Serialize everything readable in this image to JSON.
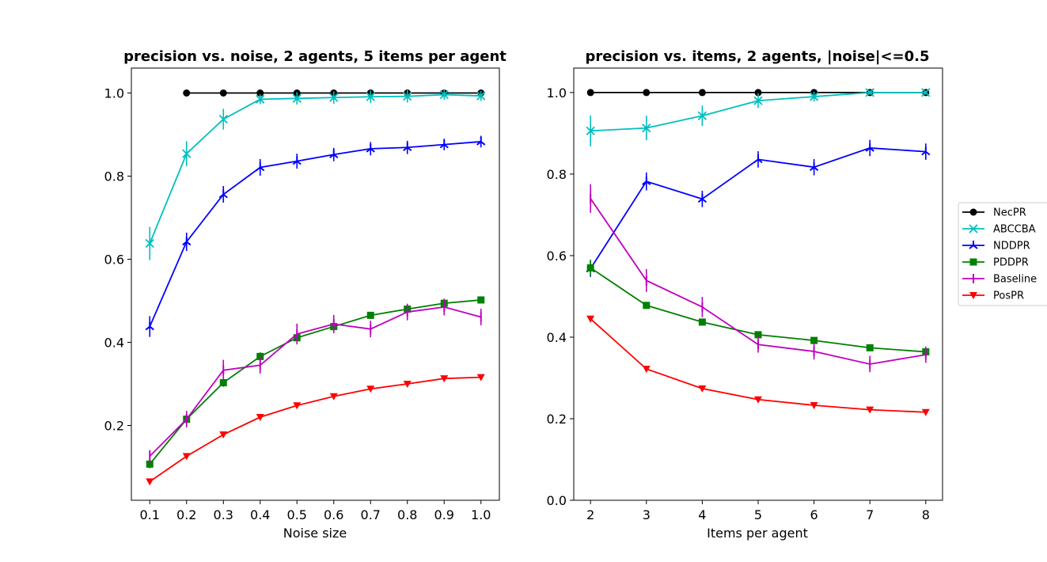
{
  "chart_data": [
    {
      "type": "line",
      "title": "precision vs. noise, 2 agents, 5 items per agent",
      "xlabel": "Noise size",
      "ylabel": "",
      "x": [
        0.1,
        0.2,
        0.3,
        0.4,
        0.5,
        0.6,
        0.7,
        0.8,
        0.9,
        1.0
      ],
      "xticks": [
        "0.1",
        "0.2",
        "0.3",
        "0.4",
        "0.5",
        "0.6",
        "0.7",
        "0.8",
        "0.9",
        "1.0"
      ],
      "xlim": [
        0.05,
        1.05
      ],
      "ylim": [
        0.02,
        1.06
      ],
      "yticks": [
        "0.2",
        "0.4",
        "0.6",
        "0.8",
        "1.0"
      ],
      "grid": false,
      "series": [
        {
          "name": "NecPR",
          "color": "#000000",
          "marker": "circle",
          "values": [
            null,
            1.0,
            1.0,
            1.0,
            1.0,
            1.0,
            1.0,
            1.0,
            1.0,
            1.0
          ],
          "errors": [
            0,
            0,
            0,
            0,
            0,
            0,
            0.005,
            0.005,
            0.005,
            0.005
          ]
        },
        {
          "name": "ABCCBA",
          "color": "#00bfbf",
          "marker": "x",
          "values": [
            0.638,
            0.854,
            0.937,
            0.985,
            0.987,
            0.989,
            0.991,
            0.992,
            0.996,
            0.993
          ],
          "errors": [
            0.04,
            0.03,
            0.025,
            0.012,
            0.015,
            0.015,
            0.015,
            0.015,
            0.012,
            0.012
          ]
        },
        {
          "name": "NDDPR",
          "color": "#0000ff",
          "marker": "tri_up",
          "values": [
            0.438,
            0.642,
            0.756,
            0.821,
            0.836,
            0.852,
            0.866,
            0.869,
            0.876,
            0.883
          ],
          "errors": [
            0.025,
            0.022,
            0.02,
            0.02,
            0.018,
            0.016,
            0.016,
            0.016,
            0.014,
            0.014
          ]
        },
        {
          "name": "PDDPR",
          "color": "#008000",
          "marker": "square",
          "values": [
            0.107,
            0.215,
            0.303,
            0.366,
            0.411,
            0.438,
            0.465,
            0.48,
            0.494,
            0.502
          ],
          "errors": [
            0.01,
            0.012,
            0.01,
            0.01,
            0.01,
            0.012,
            0.008,
            0.01,
            0.008,
            0.006
          ]
        },
        {
          "name": "Baseline",
          "color": "#bf00bf",
          "marker": "vline",
          "values": [
            0.126,
            0.215,
            0.333,
            0.345,
            0.42,
            0.444,
            0.432,
            0.473,
            0.485,
            0.461
          ],
          "errors": [
            0.015,
            0.02,
            0.025,
            0.02,
            0.025,
            0.022,
            0.02,
            0.02,
            0.02,
            0.02
          ]
        },
        {
          "name": "PosPR",
          "color": "#ff0000",
          "marker": "tri_down",
          "values": [
            0.065,
            0.126,
            0.178,
            0.22,
            0.248,
            0.27,
            0.288,
            0.3,
            0.313,
            0.316
          ],
          "errors": [
            0.004,
            0.004,
            0.004,
            0.004,
            0.004,
            0.004,
            0.004,
            0.004,
            0.004,
            0.004
          ]
        }
      ]
    },
    {
      "type": "line",
      "title": "precision vs. items, 2 agents, |noise|<=0.5",
      "xlabel": "Items per agent",
      "ylabel": "",
      "x": [
        2,
        3,
        4,
        5,
        6,
        7,
        8
      ],
      "xticks": [
        "2",
        "3",
        "4",
        "5",
        "6",
        "7",
        "8"
      ],
      "xlim": [
        1.7,
        8.3
      ],
      "ylim": [
        0.0,
        1.06
      ],
      "yticks": [
        "0.0",
        "0.2",
        "0.4",
        "0.6",
        "0.8",
        "1.0"
      ],
      "grid": false,
      "series": [
        {
          "name": "NecPR",
          "color": "#000000",
          "marker": "circle",
          "values": [
            1.0,
            1.0,
            1.0,
            1.0,
            1.0,
            1.0,
            1.0
          ],
          "errors": [
            0,
            0,
            0,
            0,
            0.004,
            0.004,
            0.004
          ]
        },
        {
          "name": "ABCCBA",
          "color": "#00bfbf",
          "marker": "x",
          "values": [
            0.906,
            0.913,
            0.943,
            0.98,
            0.99,
            1.0,
            1.0
          ],
          "errors": [
            0.038,
            0.03,
            0.025,
            0.018,
            0.012,
            0.005,
            0.005
          ]
        },
        {
          "name": "NDDPR",
          "color": "#0000ff",
          "marker": "tri_up",
          "values": [
            0.568,
            0.782,
            0.739,
            0.836,
            0.817,
            0.864,
            0.855
          ],
          "errors": [
            0.02,
            0.022,
            0.02,
            0.02,
            0.02,
            0.02,
            0.02
          ]
        },
        {
          "name": "PDDPR",
          "color": "#008000",
          "marker": "square",
          "values": [
            0.57,
            0.478,
            0.437,
            0.406,
            0.392,
            0.374,
            0.364
          ],
          "errors": [
            0.02,
            0.008,
            0.008,
            0.008,
            0.006,
            0.006,
            0.008
          ]
        },
        {
          "name": "Baseline",
          "color": "#bf00bf",
          "marker": "vline",
          "values": [
            0.74,
            0.539,
            0.474,
            0.382,
            0.365,
            0.334,
            0.357
          ],
          "errors": [
            0.035,
            0.028,
            0.025,
            0.02,
            0.02,
            0.02,
            0.02
          ]
        },
        {
          "name": "PosPR",
          "color": "#ff0000",
          "marker": "tri_down",
          "values": [
            0.445,
            0.322,
            0.274,
            0.247,
            0.233,
            0.222,
            0.216
          ],
          "errors": [
            0.008,
            0.006,
            0.004,
            0.004,
            0.004,
            0.004,
            0.004
          ]
        }
      ]
    }
  ],
  "legend": {
    "placement": "right",
    "entries": [
      "NecPR",
      "ABCCBA",
      "NDDPR",
      "PDDPR",
      "Baseline",
      "PosPR"
    ]
  }
}
